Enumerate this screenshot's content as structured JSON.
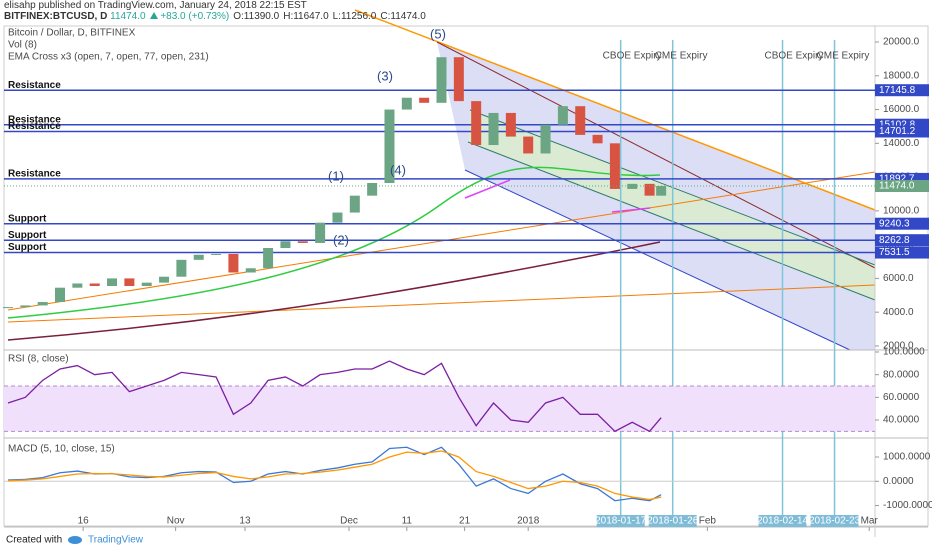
{
  "header": {
    "publisher": "elisahp published on TradingView.com, January 24, 2018 22:15 EST",
    "symbol": "BITFINEX:BTCUSD, D",
    "last": "11474.0",
    "change": "+83.0 (+0.73%)",
    "open": "O:11390.0",
    "high": "H:11647.0",
    "low": "L:11256.0",
    "close": "C:11474.0"
  },
  "footer": {
    "created": "Created with",
    "brand": "TradingView"
  },
  "chart_data": [
    {
      "type": "candlestick",
      "title": "Bitcoin / Dollar, D, BITFINEX",
      "indicators": [
        "Vol (8)",
        "EMA Cross x3 (open, 7, open, 77, open, 231)"
      ],
      "x": [
        "2017-10-03",
        "2017-10-06",
        "2017-10-09",
        "2017-10-12",
        "2017-10-15",
        "2017-10-18",
        "2017-10-21",
        "2017-10-24",
        "2017-10-27",
        "2017-10-30",
        "2017-11-02",
        "2017-11-05",
        "2017-11-08",
        "2017-11-11",
        "2017-11-14",
        "2017-11-17",
        "2017-11-20",
        "2017-11-23",
        "2017-11-26",
        "2017-11-29",
        "2017-12-02",
        "2017-12-05",
        "2017-12-08",
        "2017-12-11",
        "2017-12-14",
        "2017-12-17",
        "2017-12-20",
        "2017-12-23",
        "2017-12-26",
        "2017-12-29",
        "2018-01-01",
        "2018-01-04",
        "2018-01-07",
        "2018-01-10",
        "2018-01-13",
        "2018-01-16",
        "2018-01-19",
        "2018-01-22",
        "2018-01-24"
      ],
      "close": [
        4300,
        4400,
        4600,
        5450,
        5700,
        5550,
        6000,
        5550,
        5750,
        6100,
        7100,
        7400,
        7450,
        6350,
        6600,
        7800,
        8200,
        8100,
        9300,
        9900,
        10900,
        11650,
        16000,
        16700,
        16400,
        19100,
        16500,
        13900,
        15800,
        14400,
        13400,
        15100,
        16200,
        14500,
        14000,
        11300,
        11600,
        10900,
        11474
      ],
      "up_color": "#6ba583",
      "down_color": "#d75442",
      "xlim": [
        "2017-10-03",
        "2018-03-02"
      ],
      "xticks": [
        {
          "value": "2017-10-16",
          "label": "16"
        },
        {
          "value": "2017-11-01",
          "label": "Nov"
        },
        {
          "value": "2017-11-13",
          "label": "13"
        },
        {
          "value": "2017-12-01",
          "label": "Dec"
        },
        {
          "value": "2017-12-11",
          "label": "11"
        },
        {
          "value": "2017-12-21",
          "label": "21"
        },
        {
          "value": "2018-01-01",
          "label": "2018"
        },
        {
          "value": "2018-02-01",
          "label": "Feb"
        },
        {
          "value": "2018-03-01",
          "label": "Mar"
        }
      ],
      "date_marks": [
        "2018-01-17",
        "2018-01-26",
        "2018-02-14",
        "2018-02-23"
      ],
      "ylim": [
        1760,
        21600
      ],
      "yticks": [
        {
          "value": 20000,
          "label": "20000.0"
        },
        {
          "value": 18000,
          "label": "18000.0"
        },
        {
          "value": 16000,
          "label": "16000.0"
        },
        {
          "value": 14000,
          "label": "14000.0"
        },
        {
          "value": 12000,
          "label": "12000.0"
        },
        {
          "value": 10000,
          "label": "10000.0"
        },
        {
          "value": 8000,
          "label": "8000.0"
        },
        {
          "value": 6000,
          "label": "6000.0"
        },
        {
          "value": 4000,
          "label": "4000.0"
        },
        {
          "value": 2000,
          "label": "2000.0"
        }
      ],
      "levels": [
        {
          "label": "Resistance",
          "value": 17145.8
        },
        {
          "label": "Resistance",
          "value": 15102.8
        },
        {
          "label": "Resistance",
          "value": 14701.2
        },
        {
          "label": "Resistance",
          "value": 11892.7
        },
        {
          "label": "Support",
          "value": 9240.3
        },
        {
          "label": "Support",
          "value": 8262.8
        },
        {
          "label": "Support",
          "value": 7531.5
        }
      ],
      "level_color": "#3348c6",
      "last_price": {
        "value": 11474,
        "label": "11474.0"
      },
      "events": [
        {
          "date": "2018-01-17",
          "label": "CBOE Expiry"
        },
        {
          "date": "2018-01-26",
          "label": "CME Expiry"
        },
        {
          "date": "2018-02-14",
          "label": "CBOE Expiry"
        },
        {
          "date": "2018-02-23",
          "label": "CME Expiry"
        }
      ],
      "waves": [
        "(1)",
        "(2)",
        "(3)",
        "(4)",
        "(5)"
      ]
    },
    {
      "type": "line",
      "title": "RSI (8, close)",
      "values": [
        55,
        60,
        75,
        85,
        88,
        80,
        82,
        65,
        70,
        75,
        82,
        80,
        78,
        45,
        55,
        75,
        78,
        70,
        80,
        82,
        85,
        85,
        92,
        85,
        80,
        90,
        60,
        35,
        55,
        40,
        38,
        55,
        60,
        45,
        45,
        30,
        38,
        30,
        42
      ],
      "color": "#7b1fa2",
      "ylim": [
        25,
        100
      ],
      "band": [
        30,
        70
      ],
      "yticks": [
        {
          "value": 100,
          "label": "100.0000"
        },
        {
          "value": 80,
          "label": "80.0000"
        },
        {
          "value": 60,
          "label": "60.0000"
        },
        {
          "value": 40,
          "label": "40.0000"
        }
      ]
    },
    {
      "type": "line",
      "title": "MACD (5, 10, close, 15)",
      "series": [
        {
          "color": "#3c78d8",
          "values": [
            50,
            80,
            150,
            350,
            420,
            300,
            320,
            180,
            150,
            200,
            350,
            400,
            380,
            -50,
            0,
            300,
            400,
            300,
            450,
            550,
            700,
            800,
            1350,
            1400,
            1100,
            1400,
            700,
            -200,
            100,
            -300,
            -500,
            0,
            300,
            -100,
            -300,
            -800,
            -700,
            -800,
            -550
          ]
        },
        {
          "color": "#ff9800",
          "values": [
            20,
            50,
            100,
            200,
            300,
            320,
            310,
            260,
            200,
            180,
            250,
            320,
            360,
            200,
            100,
            180,
            300,
            320,
            380,
            460,
            580,
            700,
            1000,
            1200,
            1150,
            1250,
            1000,
            400,
            200,
            -50,
            -300,
            -200,
            0,
            -50,
            -200,
            -500,
            -650,
            -750,
            -650
          ]
        }
      ],
      "ylim": [
        -1800,
        1700
      ],
      "yticks": [
        {
          "value": 1000,
          "label": "1000.0000"
        },
        {
          "value": 0,
          "label": "0.0000"
        },
        {
          "value": -1000,
          "label": "-1000.0000"
        }
      ]
    }
  ]
}
